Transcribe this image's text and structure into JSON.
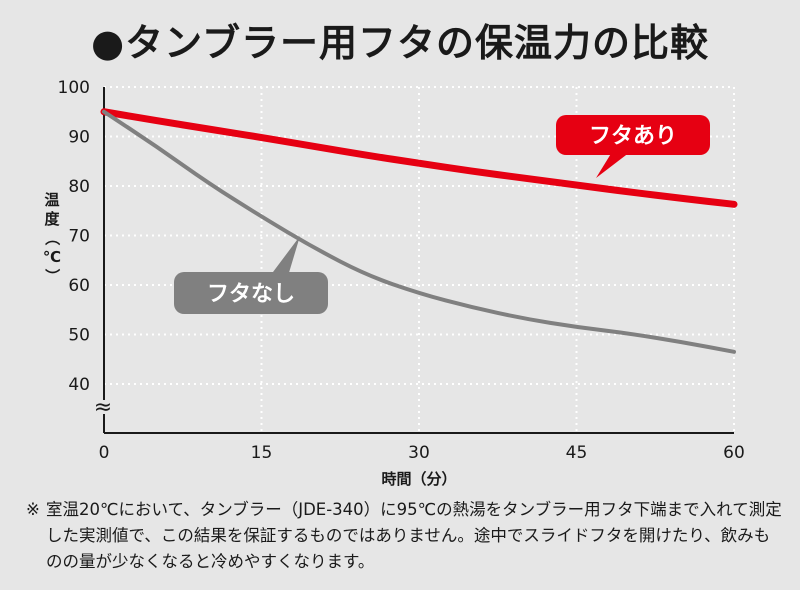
{
  "title": "●タンブラー用フタの保温力の比較",
  "note": {
    "mark": "※",
    "text": "室温20℃において、タンブラー（JDE-340）に95℃の熱湯をタンブラー用フタ下端まで入れて測定した実測値で、この結果を保証するものではありません。途中でスライドフタを開けたり、飲みものの量が少なくなると冷めやすくなります。"
  },
  "colors": {
    "with_lid": "#e60012",
    "without_lid": "#808080",
    "grid": "#ffffff",
    "plot_bg": "#e6e6e6"
  },
  "chart_data": {
    "type": "line",
    "title": "●タンブラー用フタの保温力の比較",
    "xlabel": "時間（分）",
    "ylabel_lines": [
      "温",
      "度",
      "（",
      "℃",
      "）"
    ],
    "xlim": [
      0,
      60
    ],
    "ylim": [
      40,
      100
    ],
    "y_axis_break": true,
    "y_break_symbol": "≈",
    "x_ticks": [
      0,
      15,
      30,
      45,
      60
    ],
    "y_ticks": [
      40,
      50,
      60,
      70,
      80,
      90,
      100
    ],
    "grid": "dotted",
    "series": [
      {
        "name": "フタあり",
        "color": "#e60012",
        "x": [
          0,
          5,
          10,
          15,
          20,
          25,
          30,
          35,
          40,
          45,
          50,
          55,
          60
        ],
        "y": [
          95,
          93.2,
          91.5,
          89.8,
          88.0,
          86.2,
          84.6,
          83.0,
          81.6,
          80.2,
          78.8,
          77.5,
          76.3
        ]
      },
      {
        "name": "フタなし",
        "color": "#808080",
        "x": [
          0,
          5,
          10,
          15,
          20,
          25,
          30,
          35,
          40,
          45,
          50,
          55,
          60
        ],
        "y": [
          95,
          88.0,
          80.5,
          73.8,
          67.5,
          62.0,
          58.3,
          55.5,
          53.2,
          51.5,
          50.2,
          48.5,
          46.5
        ]
      }
    ],
    "callouts": [
      {
        "series": "フタあり",
        "text": "フタあり",
        "color": "#e60012"
      },
      {
        "series": "フタなし",
        "text": "フタなし",
        "color": "#808080"
      }
    ]
  }
}
